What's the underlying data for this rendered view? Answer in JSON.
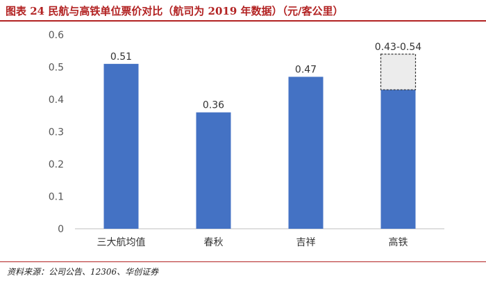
{
  "header": {
    "title": "图表 24  民航与高铁单位票价对比（航司为 2019 年数据）（元/客公里）"
  },
  "footer": {
    "source": "资料来源：公司公告、12306、华创证券"
  },
  "colors": {
    "bar": "#4472c4",
    "range_box_fill": "#ececec",
    "range_box_border": "#333333",
    "title": "#b22222"
  },
  "chart_data": {
    "type": "bar",
    "title": "",
    "xlabel": "",
    "ylabel": "",
    "ylim": [
      0,
      0.6
    ],
    "yticks": [
      "0",
      "0.1",
      "0.2",
      "0.3",
      "0.4",
      "0.5",
      "0.6"
    ],
    "grid": false,
    "legend": "none",
    "categories": [
      "三大航均值",
      "春秋",
      "吉祥",
      "高铁"
    ],
    "values": [
      0.51,
      0.36,
      0.47,
      0.43
    ],
    "data_labels": [
      "0.51",
      "0.36",
      "0.47",
      "0.43-0.54"
    ],
    "range": {
      "category": "高铁",
      "low": 0.43,
      "high": 0.54
    }
  }
}
